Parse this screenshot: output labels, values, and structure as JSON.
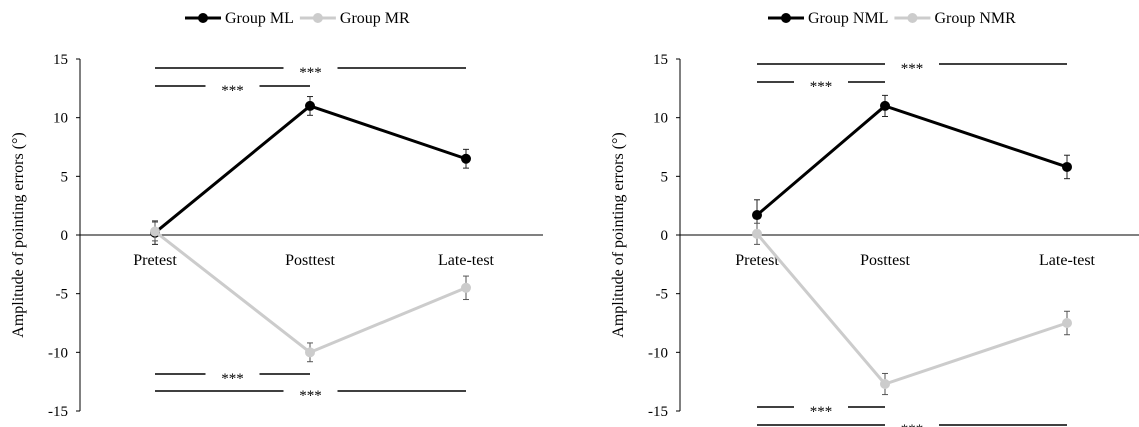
{
  "chart_data": [
    {
      "type": "line",
      "categories": [
        "Pretest",
        "Posttest",
        "Late-test"
      ],
      "ylabel": "Amplitude of pointing errors (°)",
      "ylim": [
        -15,
        15
      ],
      "yticks": [
        15,
        10,
        5,
        0,
        -5,
        -10,
        -15
      ],
      "legend_position": "top",
      "series": [
        {
          "name": "Group ML",
          "color": "#000000",
          "values": [
            0.2,
            11.0,
            6.5
          ],
          "errors": [
            1.0,
            0.8,
            0.8
          ]
        },
        {
          "name": "Group MR",
          "color": "#cccccc",
          "values": [
            0.3,
            -10.0,
            -4.5
          ],
          "errors": [
            0.8,
            0.8,
            1.0
          ]
        }
      ],
      "significance": [
        {
          "label": "***",
          "position": "above",
          "from": "Pretest",
          "to": "Late-test"
        },
        {
          "label": "***",
          "position": "above",
          "from": "Pretest",
          "to": "Posttest"
        },
        {
          "label": "***",
          "position": "below",
          "from": "Pretest",
          "to": "Posttest"
        },
        {
          "label": "***",
          "position": "below",
          "from": "Pretest",
          "to": "Late-test"
        }
      ]
    },
    {
      "type": "line",
      "categories": [
        "Pretest",
        "Posttest",
        "Late-test"
      ],
      "ylabel": "Amplitude of pointing errors (°)",
      "ylim": [
        -15,
        15
      ],
      "yticks": [
        15,
        10,
        5,
        0,
        -5,
        -10,
        -15
      ],
      "legend_position": "top",
      "series": [
        {
          "name": "Group NML",
          "color": "#000000",
          "values": [
            1.7,
            11.0,
            5.8
          ],
          "errors": [
            1.3,
            0.9,
            1.0
          ]
        },
        {
          "name": "Group NMR",
          "color": "#cccccc",
          "values": [
            0.1,
            -12.7,
            -7.5
          ],
          "errors": [
            0.9,
            0.9,
            1.0
          ]
        }
      ],
      "significance": [
        {
          "label": "***",
          "position": "above",
          "from": "Pretest",
          "to": "Late-test"
        },
        {
          "label": "***",
          "position": "above",
          "from": "Pretest",
          "to": "Posttest"
        },
        {
          "label": "***",
          "position": "below",
          "from": "Pretest",
          "to": "Posttest"
        },
        {
          "label": "***",
          "position": "below",
          "from": "Pretest",
          "to": "Late-test"
        }
      ]
    }
  ]
}
